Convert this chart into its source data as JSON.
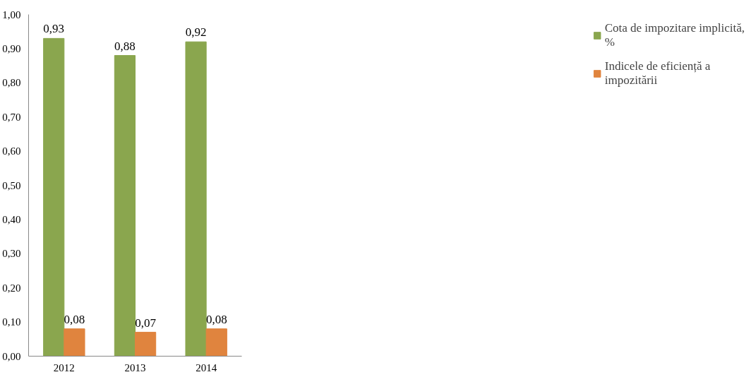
{
  "chart_data": {
    "type": "bar",
    "categories": [
      "2012",
      "2013",
      "2014"
    ],
    "series": [
      {
        "name": "Cota de impozitare implicită, %",
        "color": "#8aa64e",
        "values": [
          0.93,
          0.88,
          0.92
        ],
        "value_labels": [
          "0,93",
          "0,88",
          "0,92"
        ]
      },
      {
        "name": "Indicele de eficiență a impozitării",
        "color": "#e0843e",
        "values": [
          0.08,
          0.07,
          0.08
        ],
        "value_labels": [
          "0,08",
          "0,07",
          "0,08"
        ]
      }
    ],
    "ylim": [
      0,
      1.0
    ],
    "yticks": [
      {
        "value": 0,
        "label": "0,00"
      },
      {
        "value": 0.1,
        "label": "0,10"
      },
      {
        "value": 0.2,
        "label": "0,20"
      },
      {
        "value": 0.3,
        "label": "0,30"
      },
      {
        "value": 0.4,
        "label": "0,40"
      },
      {
        "value": 0.5,
        "label": "0,50"
      },
      {
        "value": 0.6,
        "label": "0,60"
      },
      {
        "value": 0.7,
        "label": "0,70"
      },
      {
        "value": 0.8,
        "label": "0,80"
      },
      {
        "value": 0.9,
        "label": "0,90"
      },
      {
        "value": 1.0,
        "label": "1,00"
      }
    ],
    "grid": false,
    "legend": "right"
  }
}
